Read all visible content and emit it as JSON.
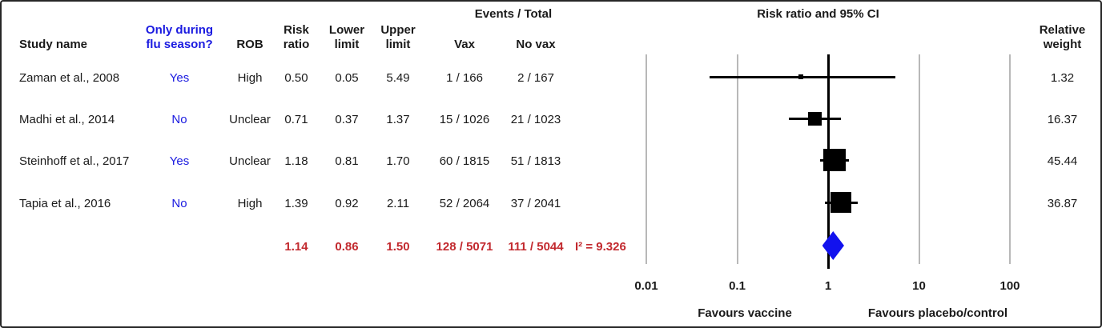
{
  "table": {
    "headers": {
      "study": "Study name",
      "flu_line1": "Only during",
      "flu_line2": "flu season?",
      "rob": "ROB",
      "rr_line1": "Risk",
      "rr_line2": "ratio",
      "lower_line1": "Lower",
      "lower_line2": "limit",
      "upper_line1": "Upper",
      "upper_line2": "limit",
      "events_total": "Events / Total",
      "vax": "Vax",
      "novax": "No vax",
      "weight_line1": "Relative",
      "weight_line2": "weight"
    },
    "rows": [
      {
        "study": "Zaman et al., 2008",
        "flu": "Yes",
        "rob": "High",
        "rr": "0.50",
        "lower": "0.05",
        "upper": "5.49",
        "vax": "1 / 166",
        "novax": "2 / 167",
        "weight": "1.32"
      },
      {
        "study": "Madhi et al., 2014",
        "flu": "No",
        "rob": "Unclear",
        "rr": "0.71",
        "lower": "0.37",
        "upper": "1.37",
        "vax": "15 / 1026",
        "novax": "21 / 1023",
        "weight": "16.37"
      },
      {
        "study": "Steinhoff et al., 2017",
        "flu": "Yes",
        "rob": "Unclear",
        "rr": "1.18",
        "lower": "0.81",
        "upper": "1.70",
        "vax": "60 / 1815",
        "novax": "51 / 1813",
        "weight": "45.44"
      },
      {
        "study": "Tapia et al., 2016",
        "flu": "No",
        "rob": "High",
        "rr": "1.39",
        "lower": "0.92",
        "upper": "2.11",
        "vax": "52 / 2064",
        "novax": "37 / 2041",
        "weight": "36.87"
      }
    ],
    "summary": {
      "rr": "1.14",
      "lower": "0.86",
      "upper": "1.50",
      "vax": "128 / 5071",
      "novax": "111 / 5044",
      "i2": "I² = 9.326"
    }
  },
  "chart_data": {
    "type": "scatter",
    "subtype": "forest-plot",
    "title": "Risk ratio and 95% CI",
    "x_scale": "log10",
    "xlim": [
      0.01,
      100
    ],
    "x_ticks": [
      0.01,
      0.1,
      1,
      10,
      100
    ],
    "null_line": 1,
    "grid": true,
    "xlabel_left": "Favours vaccine",
    "xlabel_right": "Favours placebo/control",
    "studies": [
      {
        "name": "Zaman et al., 2008",
        "rr": 0.5,
        "ci_low": 0.05,
        "ci_high": 5.49,
        "weight": 1.32
      },
      {
        "name": "Madhi et al., 2014",
        "rr": 0.71,
        "ci_low": 0.37,
        "ci_high": 1.37,
        "weight": 16.37
      },
      {
        "name": "Steinhoff et al., 2017",
        "rr": 1.18,
        "ci_low": 0.81,
        "ci_high": 1.7,
        "weight": 45.44
      },
      {
        "name": "Tapia et al., 2016",
        "rr": 1.39,
        "ci_low": 0.92,
        "ci_high": 2.11,
        "weight": 36.87
      }
    ],
    "summary": {
      "rr": 1.14,
      "ci_low": 0.86,
      "ci_high": 1.5,
      "i_squared": 9.326
    }
  },
  "colors": {
    "accent_blue": "#1a1ae0",
    "summary_red": "#c2292e",
    "diamond_blue": "#1212ee",
    "marker_black": "#000000",
    "gridline_gray": "#b8b8b8"
  }
}
